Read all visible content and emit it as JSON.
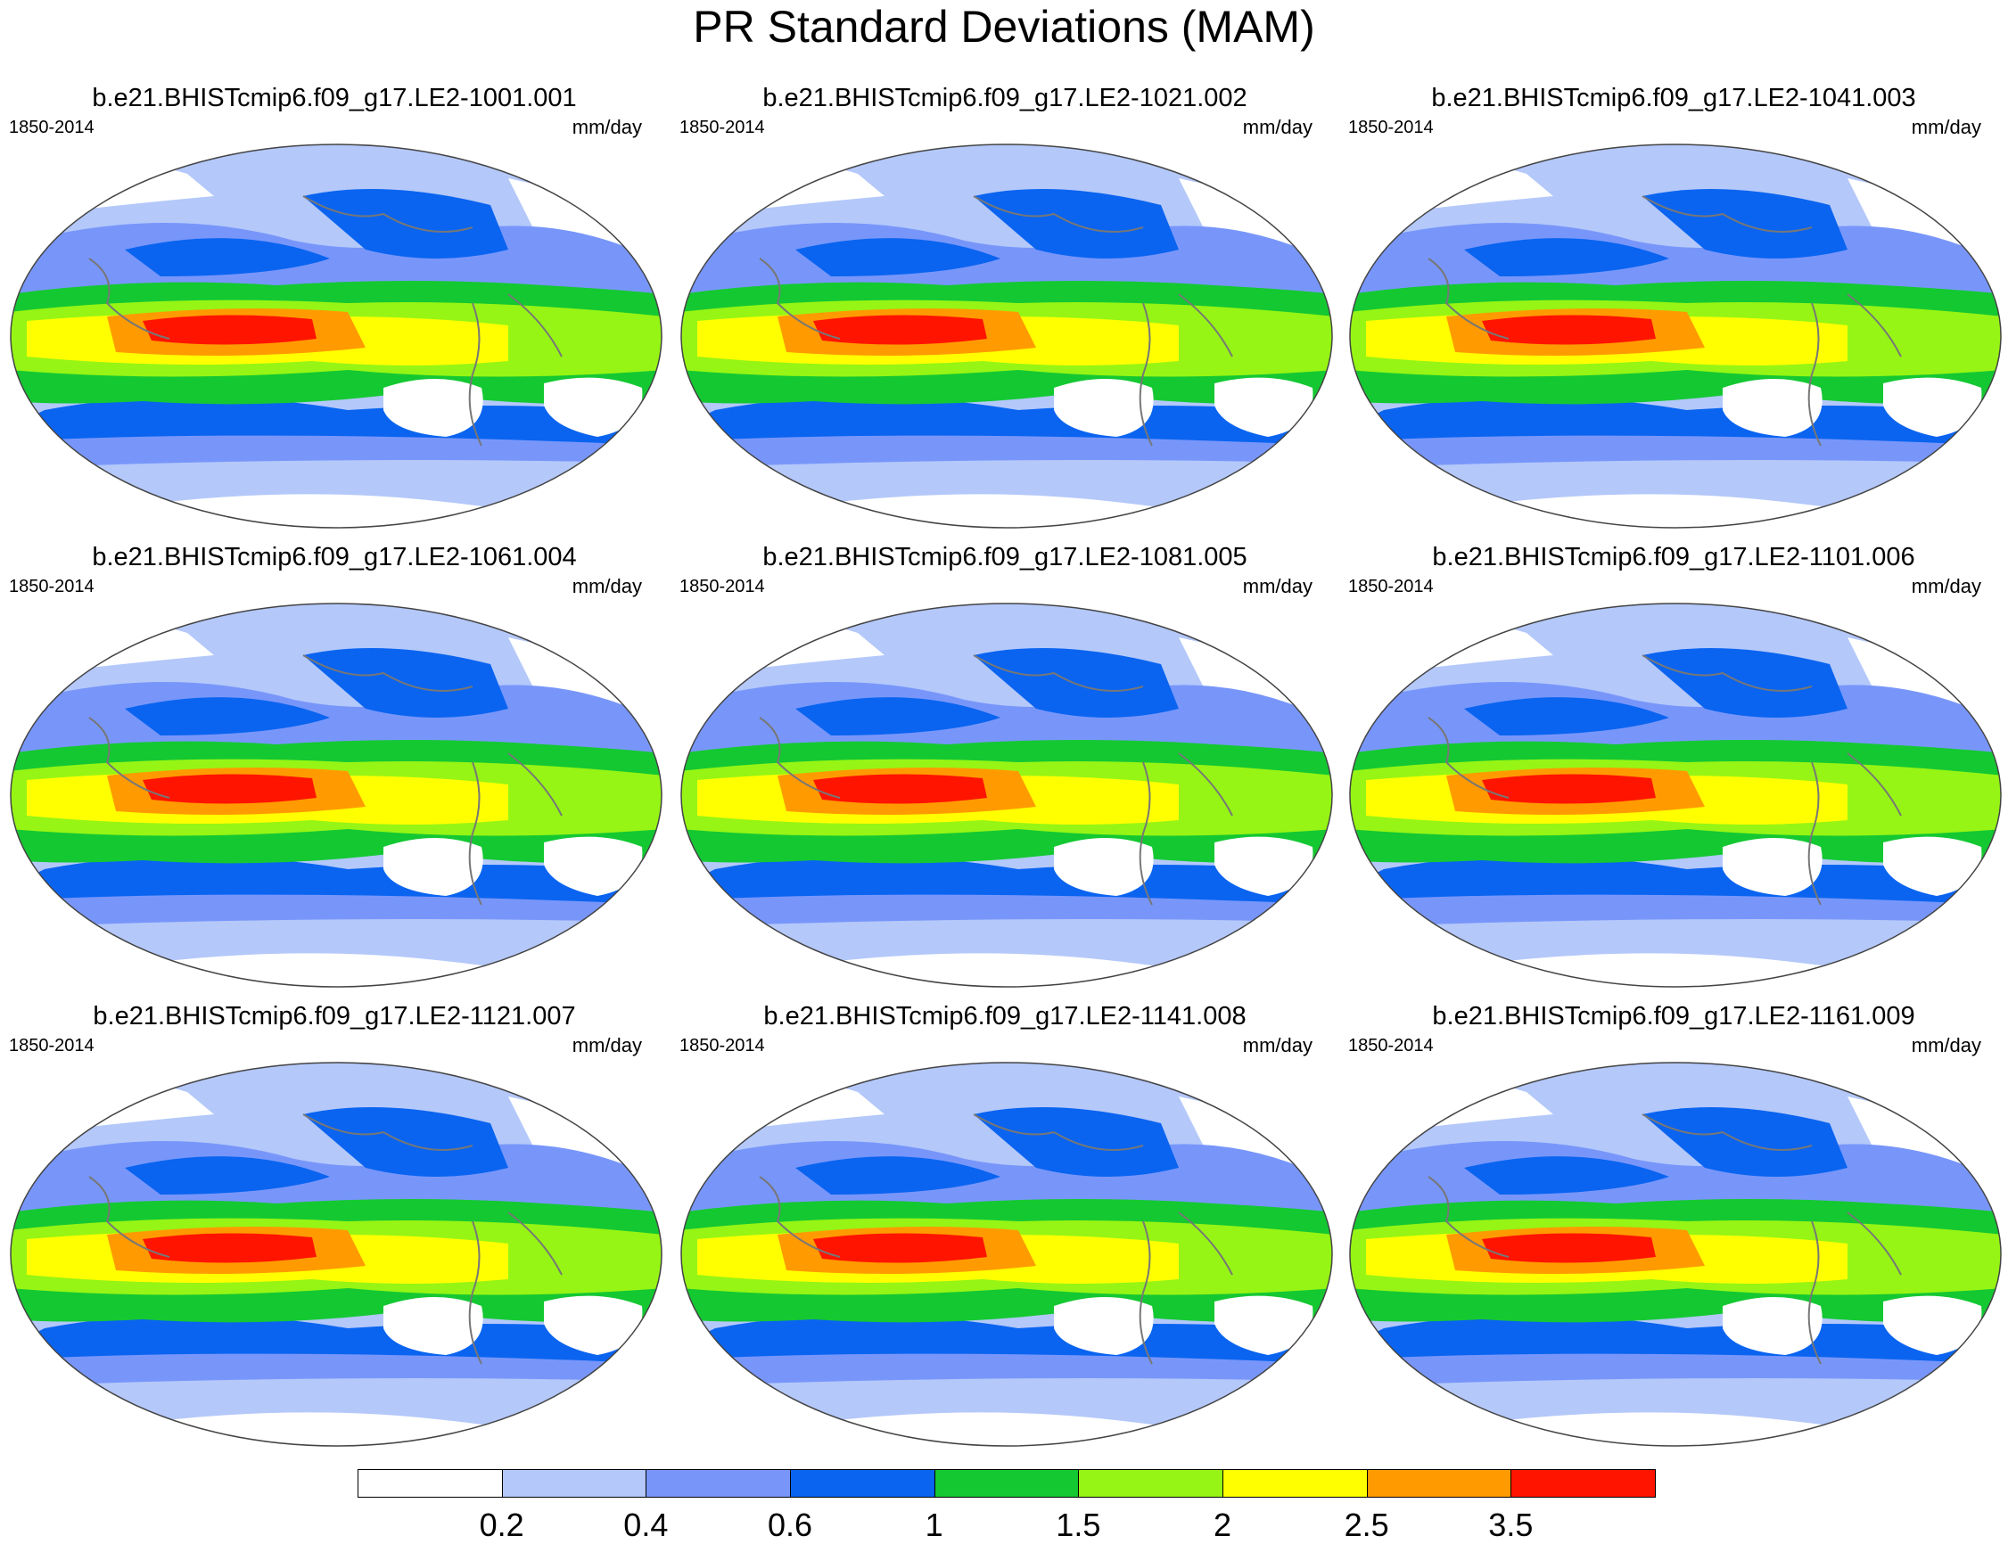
{
  "title": "PR Standard Deviations (MAM)",
  "panels": [
    {
      "title": "b.e21.BHISTcmip6.f09_g17.LE2-1001.001",
      "period": "1850-2014",
      "units": "mm/day"
    },
    {
      "title": "b.e21.BHISTcmip6.f09_g17.LE2-1021.002",
      "period": "1850-2014",
      "units": "mm/day"
    },
    {
      "title": "b.e21.BHISTcmip6.f09_g17.LE2-1041.003",
      "period": "1850-2014",
      "units": "mm/day"
    },
    {
      "title": "b.e21.BHISTcmip6.f09_g17.LE2-1061.004",
      "period": "1850-2014",
      "units": "mm/day"
    },
    {
      "title": "b.e21.BHISTcmip6.f09_g17.LE2-1081.005",
      "period": "1850-2014",
      "units": "mm/day"
    },
    {
      "title": "b.e21.BHISTcmip6.f09_g17.LE2-1101.006",
      "period": "1850-2014",
      "units": "mm/day"
    },
    {
      "title": "b.e21.BHISTcmip6.f09_g17.LE2-1121.007",
      "period": "1850-2014",
      "units": "mm/day"
    },
    {
      "title": "b.e21.BHISTcmip6.f09_g17.LE2-1141.008",
      "period": "1850-2014",
      "units": "mm/day"
    },
    {
      "title": "b.e21.BHISTcmip6.f09_g17.LE2-1161.009",
      "period": "1850-2014",
      "units": "mm/day"
    }
  ],
  "colorbar": {
    "colors": [
      "#ffffff",
      "#b4c8fa",
      "#7896fa",
      "#0a64f0",
      "#14c832",
      "#96f514",
      "#ffff00",
      "#ff9b00",
      "#ff1400"
    ],
    "labels": [
      "0.2",
      "0.4",
      "0.6",
      "1",
      "1.5",
      "2",
      "2.5",
      "3.5"
    ]
  }
}
